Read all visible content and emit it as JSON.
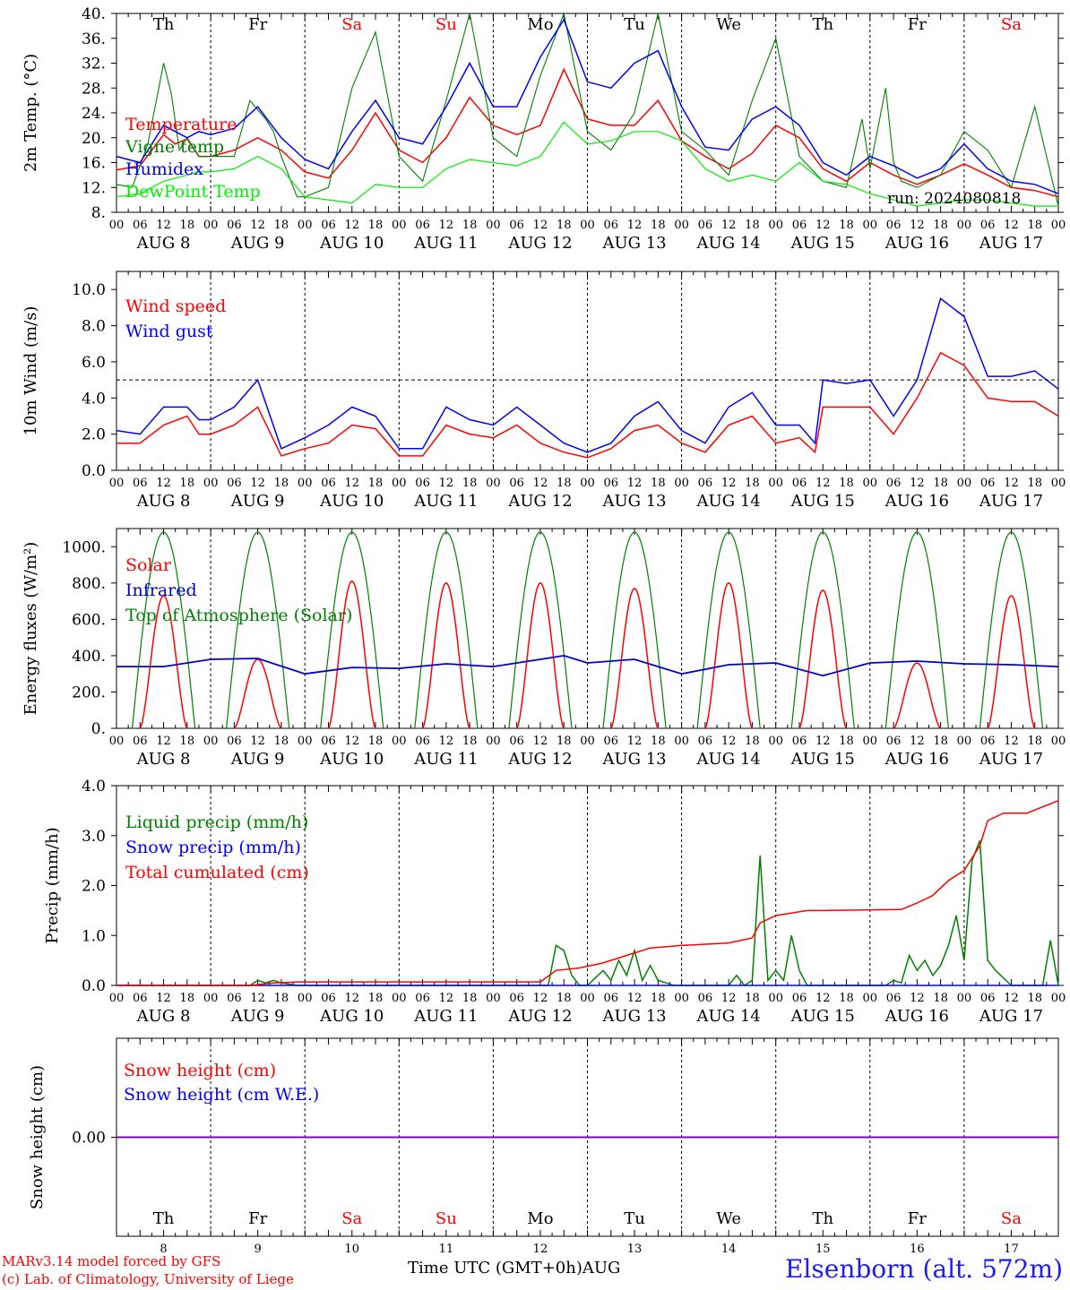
{
  "chart_data": [
    {
      "type": "line",
      "ylabel": "2m Temp. (°C)",
      "ylim": [
        8,
        40
      ],
      "yticks": [
        "8.",
        "12.",
        "16.",
        "20.",
        "24.",
        "28.",
        "32.",
        "36.",
        "40."
      ],
      "run_label": "run: 2024080818",
      "x_unit": "hours since 00 UTC Aug 8",
      "series": [
        {
          "name": "Temperature",
          "color": "#ff0000",
          "x": [
            0,
            6,
            12,
            15,
            18,
            21,
            24,
            30,
            36,
            42,
            48,
            54,
            60,
            66,
            72,
            78,
            84,
            90,
            96,
            102,
            108,
            114,
            120,
            126,
            132,
            138,
            144,
            150,
            156,
            162,
            168,
            174,
            180,
            186,
            192,
            198,
            204,
            210,
            216,
            222,
            228,
            234,
            240
          ],
          "y": [
            14.8,
            15.5,
            20.5,
            19,
            19.8,
            17,
            17,
            18,
            20,
            18,
            14.5,
            13.5,
            18,
            24,
            18,
            16,
            20,
            26.5,
            22,
            20.5,
            22,
            31,
            23,
            22,
            22,
            26,
            19.5,
            17,
            15,
            17.5,
            22,
            20,
            15,
            13,
            16,
            14,
            12.5,
            14,
            15.8,
            14,
            12,
            11.5,
            10.5
          ]
        },
        {
          "name": "Vigne temp",
          "color": "#008000",
          "x": [
            0,
            4,
            8,
            12,
            14,
            16,
            18,
            21,
            24,
            30,
            34,
            38,
            40,
            42,
            46,
            48,
            54,
            60,
            66,
            72,
            78,
            84,
            90,
            96,
            102,
            108,
            114,
            120,
            126,
            132,
            138,
            144,
            150,
            156,
            162,
            168,
            174,
            180,
            186,
            190,
            192,
            196,
            198,
            200,
            204,
            210,
            216,
            222,
            228,
            234,
            240
          ],
          "y": [
            12.5,
            12,
            19,
            32,
            27,
            18,
            20,
            17,
            17,
            17,
            26,
            23,
            21,
            17,
            10.5,
            10.5,
            12,
            28,
            37,
            17,
            13,
            26,
            40,
            20,
            17,
            30,
            40,
            21,
            18,
            24,
            40,
            21,
            18,
            14,
            26,
            36,
            17,
            13,
            12,
            23,
            15,
            28,
            16,
            13,
            12,
            14,
            21,
            18,
            12,
            25,
            9
          ]
        },
        {
          "name": "Humidex",
          "color": "#0000ff",
          "x": [
            0,
            6,
            12,
            18,
            21,
            24,
            30,
            36,
            42,
            48,
            54,
            60,
            66,
            72,
            78,
            84,
            90,
            96,
            102,
            108,
            114,
            120,
            126,
            132,
            138,
            144,
            150,
            156,
            162,
            168,
            174,
            180,
            186,
            192,
            198,
            204,
            210,
            216,
            222,
            228,
            234,
            240
          ],
          "y": [
            17,
            16,
            22,
            20,
            21,
            20.5,
            21.5,
            25,
            20,
            16.5,
            15,
            21,
            26,
            20,
            19,
            25,
            32,
            25,
            25,
            33,
            39,
            29,
            28,
            32,
            34,
            25,
            18.5,
            18,
            23,
            25,
            22,
            16,
            14,
            17,
            15.5,
            13.5,
            15,
            19,
            15,
            13,
            12.5,
            11
          ]
        },
        {
          "name": "DewPoint Temp",
          "color": "#00ee00",
          "x": [
            0,
            6,
            12,
            18,
            21,
            24,
            30,
            36,
            42,
            48,
            54,
            60,
            66,
            72,
            78,
            84,
            90,
            96,
            102,
            108,
            114,
            120,
            126,
            132,
            138,
            144,
            150,
            156,
            162,
            168,
            174,
            180,
            186,
            192,
            198,
            204,
            210,
            216,
            222,
            228,
            234,
            240
          ],
          "y": [
            10.5,
            11,
            13,
            14,
            14.5,
            14.5,
            15,
            17,
            15,
            10.5,
            10,
            9.5,
            12.5,
            12,
            12,
            15,
            16.5,
            16,
            15.5,
            17,
            22.5,
            19,
            19.5,
            21,
            21,
            19.5,
            15,
            13,
            14,
            13,
            16,
            13,
            12.5,
            11,
            10,
            9,
            9.5,
            10,
            10,
            9.5,
            9,
            9
          ]
        }
      ],
      "legend": [
        "Temperature",
        "Vigne temp",
        "Humidex",
        "DewPoint Temp"
      ]
    },
    {
      "type": "line",
      "ylabel": "10m Wind (m/s)",
      "ylim": [
        0,
        11
      ],
      "yticks": [
        "0.0",
        "2.0",
        "4.0",
        "6.0",
        "8.0",
        "10.0"
      ],
      "reference_line": 5,
      "series": [
        {
          "name": "Wind speed",
          "color": "#ff0000",
          "x": [
            0,
            6,
            12,
            18,
            21,
            24,
            30,
            36,
            42,
            48,
            54,
            60,
            66,
            72,
            78,
            84,
            90,
            96,
            102,
            108,
            114,
            120,
            126,
            132,
            138,
            144,
            150,
            156,
            162,
            168,
            174,
            178,
            180,
            186,
            192,
            198,
            204,
            210,
            216,
            222,
            228,
            234,
            240
          ],
          "y": [
            1.5,
            1.5,
            2.5,
            3,
            2,
            2,
            2.5,
            3.5,
            0.8,
            1.2,
            1.5,
            2.5,
            2.3,
            0.8,
            0.8,
            2.5,
            2,
            1.8,
            2.5,
            1.5,
            1,
            0.7,
            1.2,
            2.2,
            2.5,
            1.5,
            1,
            2.5,
            3,
            1.5,
            1.8,
            1,
            3.5,
            3.5,
            3.5,
            2,
            4,
            6.5,
            5.8,
            4,
            3.8,
            3.8,
            3
          ]
        },
        {
          "name": "Wind gust",
          "color": "#0000ff",
          "x": [
            0,
            6,
            12,
            18,
            21,
            24,
            30,
            36,
            42,
            48,
            54,
            60,
            66,
            72,
            78,
            84,
            90,
            96,
            102,
            108,
            114,
            120,
            126,
            132,
            138,
            144,
            150,
            156,
            162,
            168,
            174,
            178,
            180,
            186,
            192,
            198,
            204,
            210,
            216,
            222,
            228,
            234,
            240
          ],
          "y": [
            2.2,
            2,
            3.5,
            3.5,
            2.8,
            2.8,
            3.5,
            5,
            1.2,
            1.8,
            2.5,
            3.5,
            3,
            1.2,
            1.2,
            3.5,
            2.8,
            2.5,
            3.5,
            2.5,
            1.5,
            1,
            1.5,
            3,
            3.8,
            2.2,
            1.5,
            3.5,
            4.3,
            2.5,
            2.5,
            1.5,
            5,
            4.8,
            5,
            3,
            5,
            9.5,
            8.5,
            5.2,
            5.2,
            5.5,
            4.5
          ]
        }
      ],
      "legend": [
        "Wind speed",
        "Wind gust"
      ]
    },
    {
      "type": "line",
      "ylabel": "Energy fluxes (W/m²)",
      "ylim": [
        0,
        1100
      ],
      "yticks": [
        "0.",
        "200.",
        "400.",
        "600.",
        "800.",
        "1000."
      ],
      "solar_peaks": [
        730,
        380,
        810,
        800,
        800,
        770,
        800,
        760,
        360,
        730
      ],
      "toa_peak": 1080,
      "series": [
        {
          "name": "Solar",
          "color": "#ff0000"
        },
        {
          "name": "Infrared",
          "color": "#0000cc",
          "x": [
            0,
            12,
            24,
            36,
            48,
            60,
            72,
            84,
            96,
            108,
            114,
            120,
            132,
            144,
            156,
            168,
            180,
            192,
            204,
            216,
            228,
            240
          ],
          "y": [
            340,
            340,
            380,
            385,
            300,
            335,
            330,
            355,
            340,
            380,
            400,
            360,
            380,
            300,
            350,
            360,
            290,
            360,
            370,
            355,
            350,
            340
          ]
        },
        {
          "name": "Top of Atmosphere (Solar)",
          "color": "#008000"
        }
      ],
      "legend": [
        "Solar",
        "Infrared",
        "Top of Atmosphere (Solar)"
      ]
    },
    {
      "type": "line",
      "ylabel": "Precip (mm/h)",
      "ylim": [
        0,
        4
      ],
      "yticks": [
        "0.0",
        "1.0",
        "2.0",
        "3.0",
        "4.0"
      ],
      "series": [
        {
          "name": "Liquid precip (mm/h)",
          "color": "#008000",
          "x": [
            0,
            34,
            36,
            38,
            40,
            42,
            46,
            48,
            110,
            112,
            114,
            116,
            118,
            120,
            124,
            126,
            128,
            130,
            132,
            134,
            136,
            138,
            140,
            142,
            144,
            156,
            158,
            160,
            162,
            164,
            166,
            168,
            170,
            172,
            174,
            176,
            178,
            180,
            196,
            198,
            200,
            202,
            204,
            206,
            208,
            210,
            212,
            214,
            216,
            218,
            220,
            222,
            224,
            228,
            232,
            236,
            238,
            240
          ],
          "y": [
            0,
            0,
            0.1,
            0.05,
            0.1,
            0.05,
            0,
            0,
            0,
            0.8,
            0.7,
            0.2,
            0,
            0,
            0.3,
            0.1,
            0.5,
            0.2,
            0.7,
            0.1,
            0.4,
            0.1,
            0.05,
            0,
            0,
            0,
            0.2,
            0,
            0.1,
            2.6,
            0.1,
            0.3,
            0.1,
            1,
            0.3,
            0,
            0,
            0,
            0,
            0.1,
            0.05,
            0.6,
            0.3,
            0.5,
            0.2,
            0.4,
            0.8,
            1.4,
            0.5,
            2.5,
            2.9,
            0.5,
            0.3,
            0,
            0,
            0,
            0.9,
            0
          ]
        },
        {
          "name": "Snow precip (mm/h)",
          "color": "#0000ff",
          "x": [
            0,
            240
          ],
          "y": [
            0,
            0
          ]
        },
        {
          "name": "Total cumulated (cm)",
          "color": "#ff0000",
          "x": [
            0,
            34,
            40,
            46,
            108,
            112,
            118,
            124,
            130,
            136,
            144,
            156,
            162,
            164,
            168,
            176,
            180,
            200,
            204,
            208,
            212,
            216,
            220,
            222,
            226,
            232,
            240
          ],
          "y": [
            0,
            0,
            0.05,
            0.07,
            0.07,
            0.3,
            0.35,
            0.45,
            0.6,
            0.75,
            0.8,
            0.85,
            0.95,
            1.25,
            1.4,
            1.5,
            1.5,
            1.52,
            1.65,
            1.8,
            2.1,
            2.3,
            2.8,
            3.3,
            3.45,
            3.45,
            3.7
          ]
        }
      ],
      "legend": [
        "Liquid precip (mm/h)",
        "Snow precip (mm/h)",
        "Total cumulated (cm)"
      ]
    },
    {
      "type": "line",
      "ylabel": "Snow height (cm)",
      "yticks": [
        "0.00"
      ],
      "series": [
        {
          "name": "Snow height (cm)",
          "color": "#ff0000",
          "x": [
            0,
            240
          ],
          "y": [
            0,
            0
          ]
        },
        {
          "name": "Snow height (cm W.E.)",
          "color": "#0000ff",
          "x": [
            0,
            240
          ],
          "y": [
            0,
            0
          ]
        }
      ],
      "legend": [
        "Snow height (cm)",
        "Snow height (cm W.E.)"
      ]
    }
  ],
  "days": [
    {
      "abbr": "Th",
      "date": "AUG  8",
      "num": "8",
      "weekend": false
    },
    {
      "abbr": "Fr",
      "date": "AUG  9",
      "num": "9",
      "weekend": false
    },
    {
      "abbr": "Sa",
      "date": "AUG 10",
      "num": "10",
      "weekend": true
    },
    {
      "abbr": "Su",
      "date": "AUG 11",
      "num": "11",
      "weekend": true
    },
    {
      "abbr": "Mo",
      "date": "AUG 12",
      "num": "12",
      "weekend": false
    },
    {
      "abbr": "Tu",
      "date": "AUG 13",
      "num": "13",
      "weekend": false
    },
    {
      "abbr": "We",
      "date": "AUG 14",
      "num": "14",
      "weekend": false
    },
    {
      "abbr": "Th",
      "date": "AUG 15",
      "num": "15",
      "weekend": false
    },
    {
      "abbr": "Fr",
      "date": "AUG 16",
      "num": "16",
      "weekend": false
    },
    {
      "abbr": "Sa",
      "date": "AUG 17",
      "num": "17",
      "weekend": true
    }
  ],
  "hour_ticks": [
    "00",
    "06",
    "12",
    "18"
  ],
  "final_hour_tick": "00",
  "colors": {
    "weekend": "#ff0000",
    "weekday": "#000000",
    "station": "#1a1aff",
    "credit": "#ff0000"
  },
  "footer": {
    "model": "MARv3.14 model forced by GFS",
    "credit": "(c) Lab. of Climatology, University of Liege",
    "axis_title": "Time UTC (GMT+0h)",
    "month": "AUG",
    "station": "Elsenborn (alt. 572m)"
  }
}
